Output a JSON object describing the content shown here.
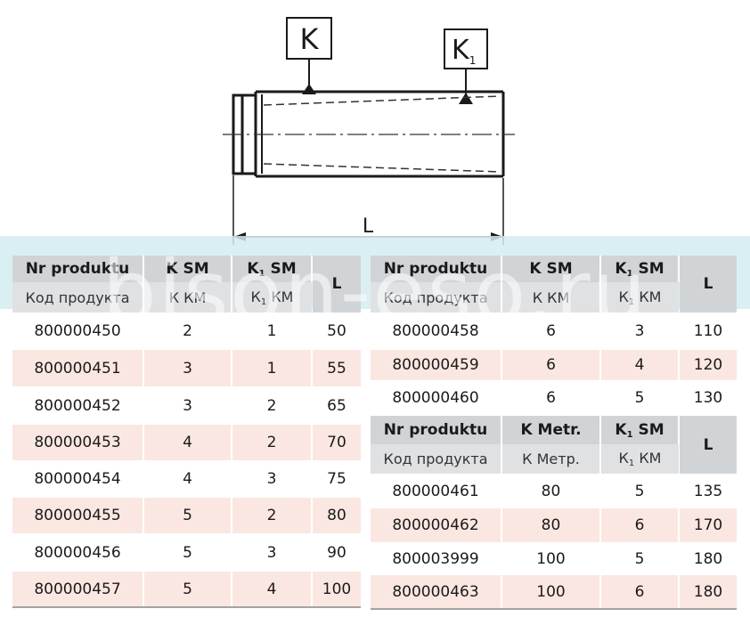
{
  "drawing": {
    "label_k": "K",
    "label_k1_main": "K",
    "label_k1_sub": "1",
    "label_length": "L"
  },
  "left_table": {
    "h_product": "Nr produktu",
    "h_ksm": "K SM",
    "h_k1sm_main": "K",
    "h_k1sm_sub": "1",
    "h_k1sm_rest": " SM",
    "h_l": "L",
    "h_product_ru": "Код продукта",
    "h_ksm_ru": "К КМ",
    "h_k1sm_ru_main": "К",
    "h_k1sm_ru_sub": "1",
    "h_k1sm_ru_rest": " КМ",
    "rows": [
      {
        "product": "800000450",
        "k": "2",
        "k1": "1",
        "l": "50"
      },
      {
        "product": "800000451",
        "k": "3",
        "k1": "1",
        "l": "55"
      },
      {
        "product": "800000452",
        "k": "3",
        "k1": "2",
        "l": "65"
      },
      {
        "product": "800000453",
        "k": "4",
        "k1": "2",
        "l": "70"
      },
      {
        "product": "800000454",
        "k": "4",
        "k1": "3",
        "l": "75"
      },
      {
        "product": "800000455",
        "k": "5",
        "k1": "2",
        "l": "80"
      },
      {
        "product": "800000456",
        "k": "5",
        "k1": "3",
        "l": "90"
      },
      {
        "product": "800000457",
        "k": "5",
        "k1": "4",
        "l": "100"
      }
    ]
  },
  "right_top_table": {
    "h_product": "Nr produktu",
    "h_ksm": "K SM",
    "h_k1sm_main": "K",
    "h_k1sm_sub": "1",
    "h_k1sm_rest": " SM",
    "h_l": "L",
    "h_product_ru": "Код продукта",
    "h_ksm_ru": "К КМ",
    "h_k1sm_ru_main": "К",
    "h_k1sm_ru_sub": "1",
    "h_k1sm_ru_rest": " КМ",
    "rows": [
      {
        "product": "800000458",
        "k": "6",
        "k1": "3",
        "l": "110"
      },
      {
        "product": "800000459",
        "k": "6",
        "k1": "4",
        "l": "120"
      },
      {
        "product": "800000460",
        "k": "6",
        "k1": "5",
        "l": "130"
      }
    ]
  },
  "right_bottom_table": {
    "h_product": "Nr produktu",
    "h_kmetr": "K Metr.",
    "h_k1sm_main": "K",
    "h_k1sm_sub": "1",
    "h_k1sm_rest": " SM",
    "h_l": "L",
    "h_product_ru": "Код продукта",
    "h_kmetr_ru": "К Метр.",
    "h_k1km_ru_main": "К",
    "h_k1km_ru_sub": "1",
    "h_k1km_ru_rest": " КМ",
    "rows": [
      {
        "product": "800000461",
        "k": "80",
        "k1": "5",
        "l": "135"
      },
      {
        "product": "800000462",
        "k": "80",
        "k1": "6",
        "l": "170"
      },
      {
        "product": "800003999",
        "k": "100",
        "k1": "5",
        "l": "180"
      },
      {
        "product": "800000463",
        "k": "100",
        "k1": "6",
        "l": "180"
      }
    ]
  },
  "watermark": "bison-eso.ru"
}
